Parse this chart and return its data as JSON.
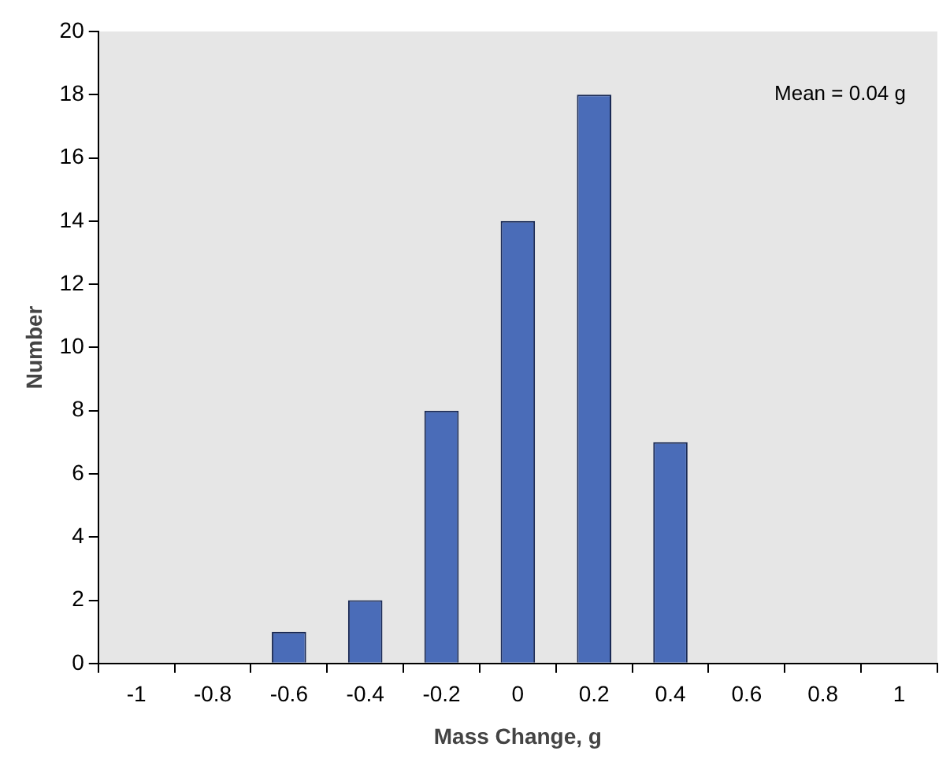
{
  "chart_data": {
    "type": "bar",
    "categories": [
      "-1",
      "-0.8",
      "-0.6",
      "-0.4",
      "-0.2",
      "0",
      "0.2",
      "0.4",
      "0.6",
      "0.8",
      "1"
    ],
    "values": [
      0,
      0,
      1,
      2,
      8,
      14,
      18,
      7,
      0,
      0,
      0
    ],
    "color": "#4a6cb8",
    "xlabel": "Mass Change, g",
    "ylabel": "Number",
    "ylim": [
      0,
      20
    ],
    "yticks": [
      0,
      2,
      4,
      6,
      8,
      10,
      12,
      14,
      16,
      18,
      20
    ],
    "annotations": [
      "Mean = 0.04 g"
    ]
  }
}
